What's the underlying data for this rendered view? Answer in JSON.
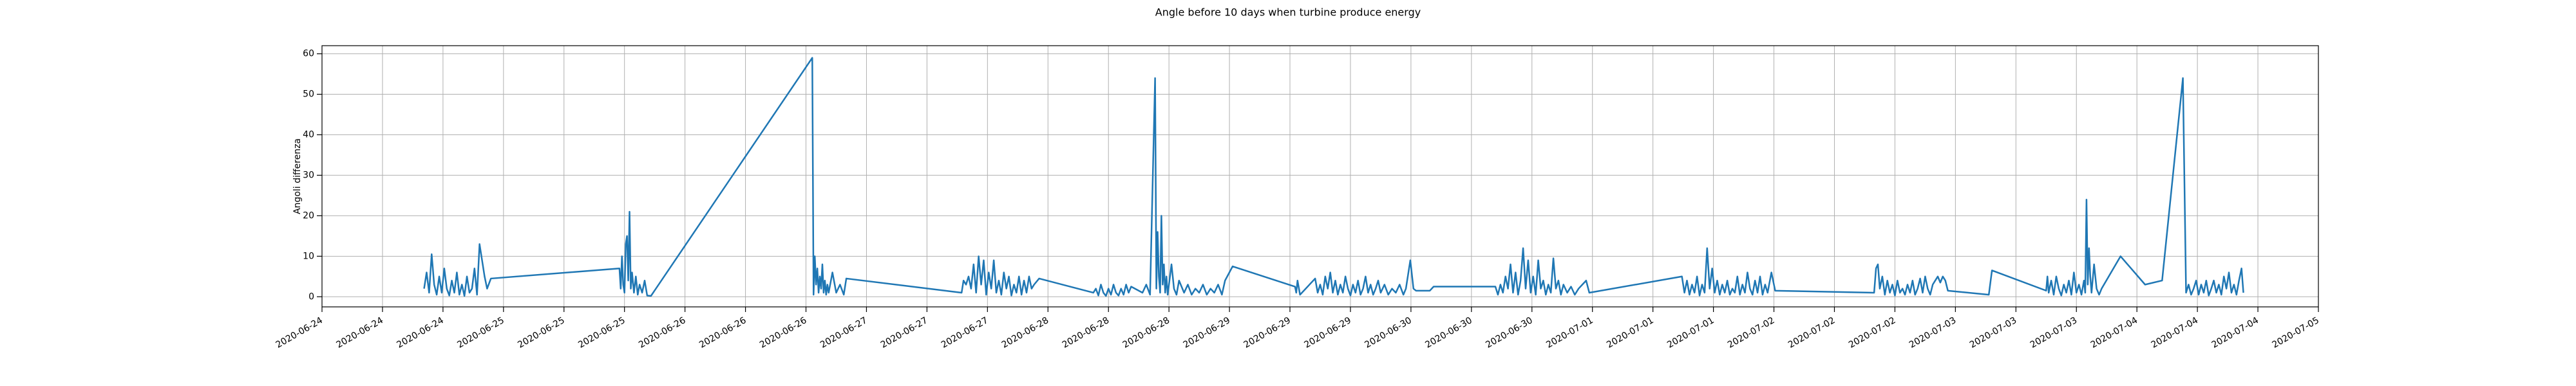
{
  "chart_data": {
    "type": "line",
    "title": "Angle before 10 days when turbine produce energy",
    "y_label": "Angoli differenza",
    "color": "#1f77b4",
    "grid": true,
    "ylim": [
      -2.5,
      62
    ],
    "yticks": [
      0,
      10,
      20,
      30,
      40,
      50,
      60
    ],
    "xlim": [
      "2020-06-24 00:00",
      "2020-07-05 00:00"
    ],
    "xticks": [
      {
        "value": "2020-06-24 00:00",
        "label": "2020-06-24"
      },
      {
        "value": "2020-06-24 08:00",
        "label": "2020-06-24"
      },
      {
        "value": "2020-06-24 16:00",
        "label": "2020-06-24"
      },
      {
        "value": "2020-06-25 00:00",
        "label": "2020-06-25"
      },
      {
        "value": "2020-06-25 08:00",
        "label": "2020-06-25"
      },
      {
        "value": "2020-06-25 16:00",
        "label": "2020-06-25"
      },
      {
        "value": "2020-06-26 00:00",
        "label": "2020-06-26"
      },
      {
        "value": "2020-06-26 08:00",
        "label": "2020-06-26"
      },
      {
        "value": "2020-06-26 16:00",
        "label": "2020-06-26"
      },
      {
        "value": "2020-06-27 00:00",
        "label": "2020-06-27"
      },
      {
        "value": "2020-06-27 08:00",
        "label": "2020-06-27"
      },
      {
        "value": "2020-06-27 16:00",
        "label": "2020-06-27"
      },
      {
        "value": "2020-06-28 00:00",
        "label": "2020-06-28"
      },
      {
        "value": "2020-06-28 08:00",
        "label": "2020-06-28"
      },
      {
        "value": "2020-06-28 16:00",
        "label": "2020-06-28"
      },
      {
        "value": "2020-06-29 00:00",
        "label": "2020-06-29"
      },
      {
        "value": "2020-06-29 08:00",
        "label": "2020-06-29"
      },
      {
        "value": "2020-06-29 16:00",
        "label": "2020-06-29"
      },
      {
        "value": "2020-06-30 00:00",
        "label": "2020-06-30"
      },
      {
        "value": "2020-06-30 08:00",
        "label": "2020-06-30"
      },
      {
        "value": "2020-06-30 16:00",
        "label": "2020-06-30"
      },
      {
        "value": "2020-07-01 00:00",
        "label": "2020-07-01"
      },
      {
        "value": "2020-07-01 08:00",
        "label": "2020-07-01"
      },
      {
        "value": "2020-07-01 16:00",
        "label": "2020-07-01"
      },
      {
        "value": "2020-07-02 00:00",
        "label": "2020-07-02"
      },
      {
        "value": "2020-07-02 08:00",
        "label": "2020-07-02"
      },
      {
        "value": "2020-07-02 16:00",
        "label": "2020-07-02"
      },
      {
        "value": "2020-07-03 00:00",
        "label": "2020-07-03"
      },
      {
        "value": "2020-07-03 08:00",
        "label": "2020-07-03"
      },
      {
        "value": "2020-07-03 16:00",
        "label": "2020-07-03"
      },
      {
        "value": "2020-07-04 00:00",
        "label": "2020-07-04"
      },
      {
        "value": "2020-07-04 08:00",
        "label": "2020-07-04"
      },
      {
        "value": "2020-07-04 16:00",
        "label": "2020-07-04"
      },
      {
        "value": "2020-07-05 00:00",
        "label": "2020-07-05"
      }
    ],
    "x": [
      "2020-06-24 13:30",
      "2020-06-24 13:50",
      "2020-06-24 14:10",
      "2020-06-24 14:30",
      "2020-06-24 14:50",
      "2020-06-24 15:10",
      "2020-06-24 15:30",
      "2020-06-24 15:50",
      "2020-06-24 16:10",
      "2020-06-24 16:30",
      "2020-06-24 16:50",
      "2020-06-24 17:10",
      "2020-06-24 17:30",
      "2020-06-24 17:50",
      "2020-06-24 18:10",
      "2020-06-24 18:30",
      "2020-06-24 18:50",
      "2020-06-24 19:10",
      "2020-06-24 19:30",
      "2020-06-24 19:50",
      "2020-06-24 20:10",
      "2020-06-24 20:30",
      "2020-06-24 20:50",
      "2020-06-24 21:10",
      "2020-06-24 21:30",
      "2020-06-24 21:50",
      "2020-06-24 22:20",
      "2020-06-25 15:20",
      "2020-06-25 15:30",
      "2020-06-25 15:40",
      "2020-06-25 15:50",
      "2020-06-25 16:00",
      "2020-06-25 16:10",
      "2020-06-25 16:20",
      "2020-06-25 16:30",
      "2020-06-25 16:40",
      "2020-06-25 16:50",
      "2020-06-25 17:00",
      "2020-06-25 17:15",
      "2020-06-25 17:30",
      "2020-06-25 17:45",
      "2020-06-25 18:00",
      "2020-06-25 18:20",
      "2020-06-25 18:40",
      "2020-06-25 19:00",
      "2020-06-25 19:30",
      "2020-06-26 16:50",
      "2020-06-26 17:00",
      "2020-06-26 17:10",
      "2020-06-26 17:20",
      "2020-06-26 17:30",
      "2020-06-26 17:40",
      "2020-06-26 17:50",
      "2020-06-26 18:00",
      "2020-06-26 18:10",
      "2020-06-26 18:20",
      "2020-06-26 18:30",
      "2020-06-26 18:40",
      "2020-06-26 18:50",
      "2020-06-26 19:00",
      "2020-06-26 19:30",
      "2020-06-26 20:00",
      "2020-06-26 20:30",
      "2020-06-26 21:00",
      "2020-06-26 21:20",
      "2020-06-27 12:35",
      "2020-06-27 12:50",
      "2020-06-27 13:10",
      "2020-06-27 13:30",
      "2020-06-27 13:50",
      "2020-06-27 14:10",
      "2020-06-27 14:30",
      "2020-06-27 14:50",
      "2020-06-27 15:10",
      "2020-06-27 15:30",
      "2020-06-27 15:50",
      "2020-06-27 16:10",
      "2020-06-27 16:30",
      "2020-06-27 16:50",
      "2020-06-27 17:10",
      "2020-06-27 17:30",
      "2020-06-27 17:50",
      "2020-06-27 18:10",
      "2020-06-27 18:30",
      "2020-06-27 18:50",
      "2020-06-27 19:10",
      "2020-06-27 19:30",
      "2020-06-27 19:50",
      "2020-06-27 20:10",
      "2020-06-27 20:30",
      "2020-06-27 20:50",
      "2020-06-27 21:10",
      "2020-06-27 21:30",
      "2020-06-27 21:50",
      "2020-06-27 22:10",
      "2020-06-27 22:50",
      "2020-06-28 06:00",
      "2020-06-28 06:20",
      "2020-06-28 06:40",
      "2020-06-28 07:00",
      "2020-06-28 07:20",
      "2020-06-28 07:40",
      "2020-06-28 08:00",
      "2020-06-28 08:20",
      "2020-06-28 08:40",
      "2020-06-28 09:00",
      "2020-06-28 09:20",
      "2020-06-28 09:40",
      "2020-06-28 10:00",
      "2020-06-28 10:20",
      "2020-06-28 10:40",
      "2020-06-28 11:00",
      "2020-06-28 12:30",
      "2020-06-28 13:00",
      "2020-06-28 13:30",
      "2020-06-28 14:10",
      "2020-06-28 14:20",
      "2020-06-28 14:30",
      "2020-06-28 14:40",
      "2020-06-28 14:50",
      "2020-06-28 15:00",
      "2020-06-28 15:10",
      "2020-06-28 15:20",
      "2020-06-28 15:30",
      "2020-06-28 15:40",
      "2020-06-28 15:50",
      "2020-06-28 16:00",
      "2020-06-28 16:20",
      "2020-06-28 16:40",
      "2020-06-28 17:00",
      "2020-06-28 17:20",
      "2020-06-28 18:00",
      "2020-06-28 18:30",
      "2020-06-28 19:00",
      "2020-06-28 19:30",
      "2020-06-28 20:00",
      "2020-06-28 20:30",
      "2020-06-28 21:00",
      "2020-06-28 21:30",
      "2020-06-28 22:00",
      "2020-06-28 22:30",
      "2020-06-28 23:00",
      "2020-06-28 23:25",
      "2020-06-29 00:25",
      "2020-06-29 08:40",
      "2020-06-29 08:50",
      "2020-06-29 09:00",
      "2020-06-29 09:20",
      "2020-06-29 11:20",
      "2020-06-29 11:40",
      "2020-06-29 12:00",
      "2020-06-29 12:20",
      "2020-06-29 12:40",
      "2020-06-29 13:00",
      "2020-06-29 13:20",
      "2020-06-29 13:40",
      "2020-06-29 14:00",
      "2020-06-29 14:20",
      "2020-06-29 14:40",
      "2020-06-29 15:00",
      "2020-06-29 15:20",
      "2020-06-29 15:40",
      "2020-06-29 16:00",
      "2020-06-29 16:20",
      "2020-06-29 16:40",
      "2020-06-29 17:00",
      "2020-06-29 17:20",
      "2020-06-29 17:40",
      "2020-06-29 18:00",
      "2020-06-29 18:20",
      "2020-06-29 18:40",
      "2020-06-29 19:00",
      "2020-06-29 19:20",
      "2020-06-29 19:40",
      "2020-06-29 20:00",
      "2020-06-29 20:30",
      "2020-06-29 21:00",
      "2020-06-29 21:30",
      "2020-06-29 22:00",
      "2020-06-29 22:30",
      "2020-06-29 23:00",
      "2020-06-29 23:20",
      "2020-06-29 23:55",
      "2020-06-30 00:20",
      "2020-06-30 00:40",
      "2020-06-30 02:30",
      "2020-06-30 03:00",
      "2020-06-30 11:10",
      "2020-06-30 11:30",
      "2020-06-30 11:50",
      "2020-06-30 12:10",
      "2020-06-30 12:30",
      "2020-06-30 12:50",
      "2020-06-30 13:10",
      "2020-06-30 13:30",
      "2020-06-30 13:50",
      "2020-06-30 14:10",
      "2020-06-30 14:30",
      "2020-06-30 14:50",
      "2020-06-30 15:10",
      "2020-06-30 15:30",
      "2020-06-30 15:50",
      "2020-06-30 16:10",
      "2020-06-30 16:30",
      "2020-06-30 16:50",
      "2020-06-30 17:10",
      "2020-06-30 17:30",
      "2020-06-30 17:50",
      "2020-06-30 18:10",
      "2020-06-30 18:30",
      "2020-06-30 18:50",
      "2020-06-30 19:10",
      "2020-06-30 19:30",
      "2020-06-30 19:50",
      "2020-06-30 20:10",
      "2020-06-30 20:40",
      "2020-06-30 21:10",
      "2020-06-30 21:40",
      "2020-06-30 22:10",
      "2020-06-30 22:40",
      "2020-06-30 23:10",
      "2020-06-30 23:35",
      "2020-07-01 11:50",
      "2020-07-01 12:10",
      "2020-07-01 12:30",
      "2020-07-01 12:50",
      "2020-07-01 13:10",
      "2020-07-01 13:30",
      "2020-07-01 13:50",
      "2020-07-01 14:10",
      "2020-07-01 14:30",
      "2020-07-01 14:50",
      "2020-07-01 15:10",
      "2020-07-01 15:30",
      "2020-07-01 15:50",
      "2020-07-01 16:10",
      "2020-07-01 16:30",
      "2020-07-01 16:50",
      "2020-07-01 17:10",
      "2020-07-01 17:30",
      "2020-07-01 17:50",
      "2020-07-01 18:10",
      "2020-07-01 18:30",
      "2020-07-01 18:50",
      "2020-07-01 19:10",
      "2020-07-01 19:30",
      "2020-07-01 19:50",
      "2020-07-01 20:10",
      "2020-07-01 20:30",
      "2020-07-01 20:50",
      "2020-07-01 21:10",
      "2020-07-01 21:30",
      "2020-07-01 21:50",
      "2020-07-01 22:10",
      "2020-07-01 22:30",
      "2020-07-01 22:50",
      "2020-07-01 23:10",
      "2020-07-01 23:40",
      "2020-07-02 00:10",
      "2020-07-02 13:15",
      "2020-07-02 13:30",
      "2020-07-02 13:45",
      "2020-07-02 14:00",
      "2020-07-02 14:20",
      "2020-07-02 14:40",
      "2020-07-02 15:00",
      "2020-07-02 15:20",
      "2020-07-02 15:40",
      "2020-07-02 16:00",
      "2020-07-02 16:20",
      "2020-07-02 16:40",
      "2020-07-02 17:00",
      "2020-07-02 17:20",
      "2020-07-02 17:40",
      "2020-07-02 18:00",
      "2020-07-02 18:20",
      "2020-07-02 18:40",
      "2020-07-02 19:00",
      "2020-07-02 19:20",
      "2020-07-02 19:40",
      "2020-07-02 20:00",
      "2020-07-02 20:20",
      "2020-07-02 20:40",
      "2020-07-02 21:00",
      "2020-07-02 21:20",
      "2020-07-02 21:40",
      "2020-07-02 22:00",
      "2020-07-02 22:20",
      "2020-07-02 22:40",
      "2020-07-02 23:00",
      "2020-07-03 04:25",
      "2020-07-03 04:50",
      "2020-07-03 12:00",
      "2020-07-03 12:10",
      "2020-07-03 12:20",
      "2020-07-03 12:40",
      "2020-07-03 13:00",
      "2020-07-03 13:20",
      "2020-07-03 13:40",
      "2020-07-03 14:00",
      "2020-07-03 14:20",
      "2020-07-03 14:40",
      "2020-07-03 15:00",
      "2020-07-03 15:20",
      "2020-07-03 15:40",
      "2020-07-03 16:00",
      "2020-07-03 16:20",
      "2020-07-03 16:40",
      "2020-07-03 17:00",
      "2020-07-03 17:10",
      "2020-07-03 17:20",
      "2020-07-03 17:30",
      "2020-07-03 17:40",
      "2020-07-03 17:50",
      "2020-07-03 18:00",
      "2020-07-03 18:20",
      "2020-07-03 18:40",
      "2020-07-03 19:00",
      "2020-07-03 19:20",
      "2020-07-03 21:50",
      "2020-07-04 01:05",
      "2020-07-04 03:20",
      "2020-07-04 06:05",
      "2020-07-04 06:30",
      "2020-07-04 06:50",
      "2020-07-04 07:10",
      "2020-07-04 07:30",
      "2020-07-04 07:50",
      "2020-07-04 08:10",
      "2020-07-04 08:30",
      "2020-07-04 08:50",
      "2020-07-04 09:10",
      "2020-07-04 09:30",
      "2020-07-04 09:50",
      "2020-07-04 10:10",
      "2020-07-04 10:30",
      "2020-07-04 10:50",
      "2020-07-04 11:10",
      "2020-07-04 11:30",
      "2020-07-04 11:50",
      "2020-07-04 12:10",
      "2020-07-04 12:30",
      "2020-07-04 12:50",
      "2020-07-04 13:10",
      "2020-07-04 13:30",
      "2020-07-04 13:50",
      "2020-07-04 14:05"
    ],
    "values": [
      2,
      6,
      1,
      10.5,
      3,
      0.5,
      5,
      1,
      7,
      2,
      0.3,
      4,
      1,
      6,
      0.5,
      3,
      0.2,
      5,
      1,
      2,
      7,
      0.5,
      13,
      9,
      5,
      2,
      4.5,
      7,
      2,
      10,
      3,
      1,
      13,
      15,
      4,
      21,
      2,
      6,
      1,
      5,
      0.5,
      3,
      1,
      4,
      0.3,
      0.2,
      59,
      0.5,
      10,
      3,
      7,
      1,
      5,
      2,
      8,
      1,
      4,
      0.5,
      3,
      1,
      6,
      1,
      3,
      0.5,
      4.5,
      1,
      4,
      3,
      5,
      2,
      8,
      1,
      10,
      3,
      9,
      0.5,
      6,
      2,
      9,
      1,
      4,
      0.5,
      6,
      2,
      5,
      0.3,
      3,
      1,
      5,
      0.5,
      4,
      1,
      5,
      2,
      3,
      4.5,
      1,
      2,
      0.3,
      3,
      1,
      0.2,
      2,
      0.5,
      3,
      1,
      0.3,
      2,
      0.5,
      3,
      1,
      2.5,
      1,
      3,
      0.5,
      54,
      2,
      16,
      5,
      1,
      20,
      3,
      8,
      1,
      5,
      0.5,
      3,
      8,
      2,
      0.5,
      4,
      1,
      3,
      0.5,
      2,
      1,
      3,
      0.5,
      2,
      1,
      3,
      0.5,
      4,
      7.5,
      2.5,
      1,
      4,
      0.5,
      4.5,
      1,
      3,
      0.5,
      5,
      2,
      6,
      1,
      4,
      0.5,
      3,
      1,
      5,
      2,
      0.3,
      3,
      1,
      4,
      0.5,
      2,
      5,
      1,
      3,
      0.5,
      2,
      4,
      1,
      3,
      0.5,
      2,
      1,
      3,
      0.5,
      2,
      9,
      2,
      1.5,
      1.5,
      2.5,
      2.5,
      0.5,
      3,
      1,
      5,
      2,
      8,
      1,
      6,
      0.5,
      4,
      12,
      2,
      9,
      1,
      5,
      0.5,
      9,
      2,
      4,
      0.5,
      3,
      1,
      9.5,
      2,
      4,
      0.5,
      3,
      1,
      2.5,
      0.5,
      2,
      3,
      4,
      1,
      5,
      1,
      4,
      0.5,
      3,
      1,
      5,
      0.3,
      3,
      1,
      12,
      2,
      7,
      1,
      4,
      0.5,
      3,
      1,
      4,
      0.5,
      2,
      1,
      5,
      0.5,
      3,
      1,
      6,
      2,
      0.5,
      4,
      1,
      5,
      0.5,
      3,
      1,
      6,
      1.5,
      1,
      7,
      8,
      2,
      5,
      0.5,
      4,
      1,
      3,
      0.3,
      4,
      1,
      2,
      0.5,
      3,
      1,
      4,
      0.5,
      2,
      4.5,
      1,
      5,
      2,
      0.5,
      3,
      4,
      5,
      3.5,
      5,
      4,
      1.5,
      0.5,
      6.5,
      1.5,
      5,
      1,
      4,
      0.5,
      5,
      2,
      0.3,
      3,
      1,
      4,
      0.5,
      6,
      1,
      3,
      0.5,
      4,
      1,
      24,
      3,
      12,
      5,
      1,
      8,
      2,
      0.5,
      2,
      10,
      3,
      4,
      54,
      1,
      3,
      0.5,
      2,
      4,
      0.5,
      3,
      1,
      4,
      0.3,
      2,
      4,
      1,
      3,
      0.5,
      5,
      2,
      6,
      1,
      3,
      0.5,
      4,
      7,
      1
    ]
  }
}
